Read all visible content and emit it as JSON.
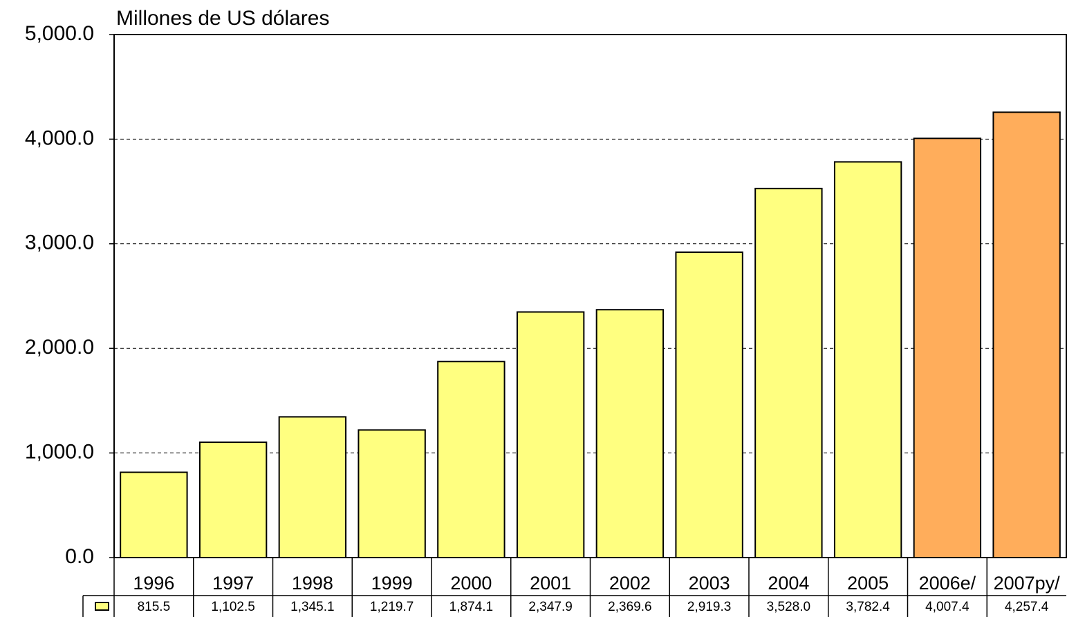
{
  "chart_data": {
    "type": "bar",
    "y_label": "Millones de US dólares",
    "categories": [
      "1996",
      "1997",
      "1998",
      "1999",
      "2000",
      "2001",
      "2002",
      "2003",
      "2004",
      "2005",
      "2006e/",
      "2007py/"
    ],
    "values": [
      815.5,
      1102.5,
      1345.1,
      1219.7,
      1874.1,
      2347.9,
      2369.6,
      2919.3,
      3528.0,
      3782.4,
      4007.4,
      4257.4
    ],
    "value_labels": [
      "815.5",
      "1,102.5",
      "1,345.1",
      "1,219.7",
      "1,874.1",
      "2,347.9",
      "2,369.6",
      "2,919.3",
      "3,528.0",
      "3,782.4",
      "4,007.4",
      "4,257.4"
    ],
    "colors": [
      "#ffff80",
      "#ffff80",
      "#ffff80",
      "#ffff80",
      "#ffff80",
      "#ffff80",
      "#ffff80",
      "#ffff80",
      "#ffff80",
      "#ffff80",
      "#ffad5b",
      "#ffad5b"
    ],
    "ylim": [
      0,
      5000
    ],
    "yticks": [
      {
        "value": 0,
        "label": "0.0"
      },
      {
        "value": 1000,
        "label": "1,000.0"
      },
      {
        "value": 2000,
        "label": "2,000.0"
      },
      {
        "value": 3000,
        "label": "3,000.0"
      },
      {
        "value": 4000,
        "label": "4,000.0"
      },
      {
        "value": 5000,
        "label": "5,000.0"
      }
    ],
    "grid": true
  }
}
